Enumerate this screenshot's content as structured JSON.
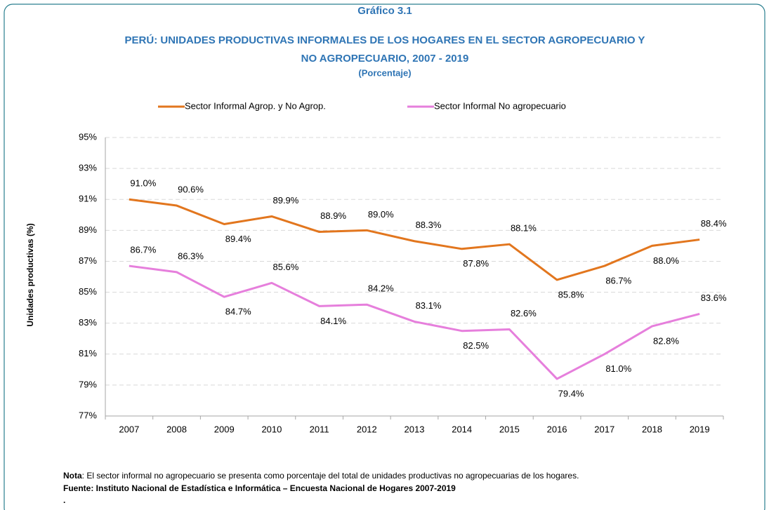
{
  "chart_data": {
    "type": "line",
    "heading": "Gráfico 3.1",
    "title": [
      "PERÚ: UNIDADES PRODUCTIVAS INFORMALES DE LOS HOGARES EN EL SECTOR AGROPECUARIO Y",
      "NO AGROPECUARIO, 2007 - 2019"
    ],
    "subtitle": "(Porcentaje)",
    "y_label": "Unidades productivas (%)",
    "categories": [
      "2007",
      "2008",
      "2009",
      "2010",
      "2011",
      "2012",
      "2013",
      "2014",
      "2015",
      "2016",
      "2017",
      "2018",
      "2019"
    ],
    "series": [
      {
        "name": "Sector Informal Agrop. y No Agrop.",
        "color": "#e2761e",
        "values": [
          91.0,
          90.6,
          89.4,
          89.9,
          88.9,
          89.0,
          88.3,
          87.8,
          88.1,
          85.8,
          86.7,
          88.0,
          88.4
        ],
        "value_labels": [
          "91.0%",
          "90.6%",
          "89.4%",
          "89.9%",
          "88.9%",
          "89.0%",
          "88.3%",
          "87.8%",
          "88.1%",
          "85.8%",
          "86.7%",
          "88.0%",
          "88.4%"
        ]
      },
      {
        "name": "Sector Informal No agropecuario",
        "color": "#e67fdc",
        "values": [
          86.7,
          86.3,
          84.7,
          85.6,
          84.1,
          84.2,
          83.1,
          82.5,
          82.6,
          79.4,
          81.0,
          82.8,
          83.6
        ],
        "value_labels": [
          "86.7%",
          "86.3%",
          "84.7%",
          "85.6%",
          "84.1%",
          "84.2%",
          "83.1%",
          "82.5%",
          "82.6%",
          "79.4%",
          "81.0%",
          "82.8%",
          "83.6%"
        ]
      }
    ],
    "ylim": [
      77,
      95
    ],
    "yticks": [
      {
        "value": 77,
        "label": "77%"
      },
      {
        "value": 79,
        "label": "79%"
      },
      {
        "value": 81,
        "label": "81%"
      },
      {
        "value": 83,
        "label": "83%"
      },
      {
        "value": 85,
        "label": "85%"
      },
      {
        "value": 87,
        "label": "87%"
      },
      {
        "value": 89,
        "label": "89%"
      },
      {
        "value": 91,
        "label": "91%"
      },
      {
        "value": 93,
        "label": "93%"
      },
      {
        "value": 95,
        "label": "95%"
      }
    ],
    "grid": true,
    "legend": "top",
    "note": {
      "label": "Nota",
      "text": ": El sector informal no agropecuario se presenta como porcentaje del total de unidades productivas no agropecuarias de los hogares."
    },
    "source": "Fuente: Instituto Nacional de Estadística e Informática – Encuesta Nacional de Hogares 2007-2019",
    "footer_mark": "."
  }
}
